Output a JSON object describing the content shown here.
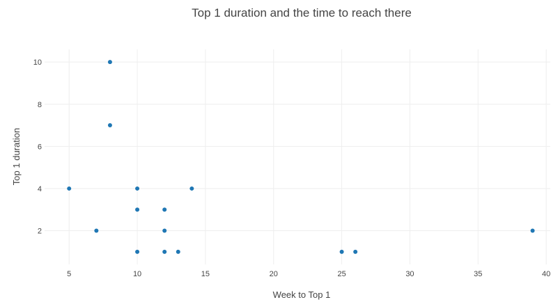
{
  "chart_data": {
    "type": "scatter",
    "title": "Top 1 duration and the time to reach there",
    "xlabel": "Week to Top 1",
    "ylabel": "Top 1 duration",
    "xlim": [
      3.2,
      40.3
    ],
    "ylim": [
      0.4,
      10.6
    ],
    "xticks": [
      5,
      10,
      15,
      20,
      25,
      30,
      35,
      40
    ],
    "yticks": [
      2,
      4,
      6,
      8,
      10
    ],
    "grid": true,
    "point_color": "#1f77b4",
    "points": [
      {
        "x": 5,
        "y": 4
      },
      {
        "x": 7,
        "y": 2
      },
      {
        "x": 8,
        "y": 10
      },
      {
        "x": 8,
        "y": 7
      },
      {
        "x": 10,
        "y": 4
      },
      {
        "x": 10,
        "y": 3
      },
      {
        "x": 10,
        "y": 1
      },
      {
        "x": 12,
        "y": 3
      },
      {
        "x": 12,
        "y": 2
      },
      {
        "x": 12,
        "y": 1
      },
      {
        "x": 13,
        "y": 1
      },
      {
        "x": 14,
        "y": 4
      },
      {
        "x": 25,
        "y": 1
      },
      {
        "x": 26,
        "y": 1
      },
      {
        "x": 39,
        "y": 2
      }
    ]
  }
}
